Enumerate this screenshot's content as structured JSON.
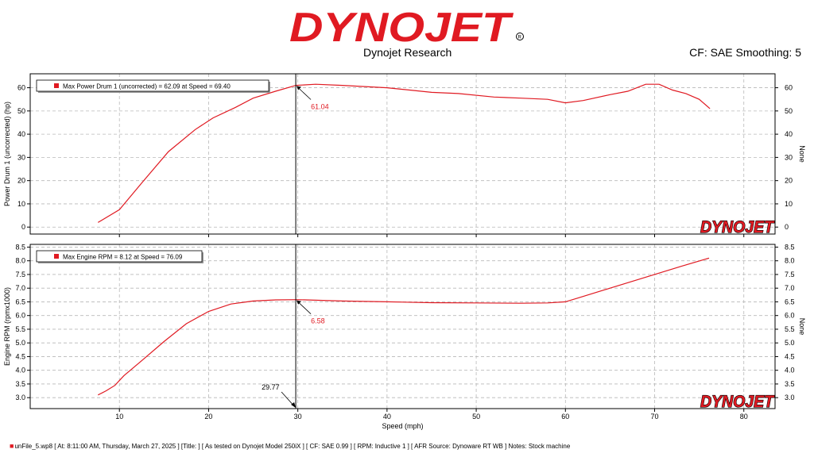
{
  "header": {
    "brand": "DYNOJET",
    "subtitle": "Dynojet Research",
    "correction_info": "CF: SAE Smoothing: 5",
    "brand_color": "#e01a22"
  },
  "footer": {
    "text": "unFile_5.wp8 [ At: 8:11:00 AM, Thursday, March 27, 2025 ] [Title: ] [ As tested on Dynojet Model 250iX ] [ CF: SAE 0.99 ] [ RPM: Inductive 1 ] [ AFR Source: Dynoware RT WB ] Notes: Stock machine"
  },
  "chart_data": [
    {
      "type": "line",
      "ylabel": "Power Drum 1 (uncorrected) (hp)",
      "ylabel_right": "None",
      "ylim": [
        -3,
        66
      ],
      "yticks": [
        0,
        10,
        20,
        30,
        40,
        50,
        60
      ],
      "xlim": [
        0,
        83.5
      ],
      "xticks": [
        10,
        20,
        30,
        40,
        50,
        60,
        70,
        80
      ],
      "grid": true,
      "legend": "Max Power Drum 1 (uncorrected) = 62.09 at Speed = 69.40",
      "legend_placement": "top-left",
      "cursor": {
        "x": 29.77,
        "y": 61.04,
        "label": "61.04"
      },
      "series": [
        {
          "color": "#e01a22",
          "x": [
            7.6,
            10,
            12.5,
            15.5,
            18.5,
            20.5,
            23,
            25,
            27.5,
            29.8,
            32,
            35,
            40,
            45,
            48,
            52,
            55,
            58,
            60,
            62,
            65,
            67,
            69,
            70.5,
            72,
            73.5,
            75,
            76.2
          ],
          "y": [
            2,
            7.5,
            19,
            32.5,
            42,
            47,
            51.5,
            55.5,
            58.5,
            61,
            61.5,
            61,
            60,
            58,
            57.5,
            56,
            55.5,
            55,
            53.5,
            54.5,
            57,
            58.5,
            61.5,
            61.5,
            59,
            57.5,
            55,
            51
          ]
        }
      ]
    },
    {
      "type": "line",
      "xlabel": "Speed (mph)",
      "ylabel": "Engine RPM (rpmx1000)",
      "ylabel_right": "None",
      "ylim": [
        2.6,
        8.6
      ],
      "yticks": [
        3.0,
        3.5,
        4.0,
        4.5,
        5.0,
        5.5,
        6.0,
        6.5,
        7.0,
        7.5,
        8.0,
        8.5
      ],
      "xlim": [
        0,
        83.5
      ],
      "xticks": [
        10,
        20,
        30,
        40,
        50,
        60,
        70,
        80
      ],
      "grid": true,
      "legend": "Max Engine RPM = 8.12 at Speed = 76.09",
      "legend_placement": "top-left",
      "cursor": {
        "x": 29.77,
        "y": 6.58,
        "label": "6.58",
        "x_label": "29.77"
      },
      "series": [
        {
          "color": "#e01a22",
          "x": [
            7.6,
            8.5,
            9.5,
            10.5,
            12.5,
            15,
            17.5,
            20,
            22.5,
            25,
            27.5,
            30,
            35,
            40,
            45,
            50,
            55,
            58,
            60,
            62,
            65,
            70,
            73,
            76.1
          ],
          "y": [
            3.1,
            3.25,
            3.45,
            3.8,
            4.35,
            5.05,
            5.7,
            6.15,
            6.42,
            6.53,
            6.57,
            6.58,
            6.53,
            6.5,
            6.47,
            6.46,
            6.45,
            6.46,
            6.5,
            6.7,
            7.0,
            7.5,
            7.8,
            8.1
          ]
        }
      ]
    }
  ]
}
